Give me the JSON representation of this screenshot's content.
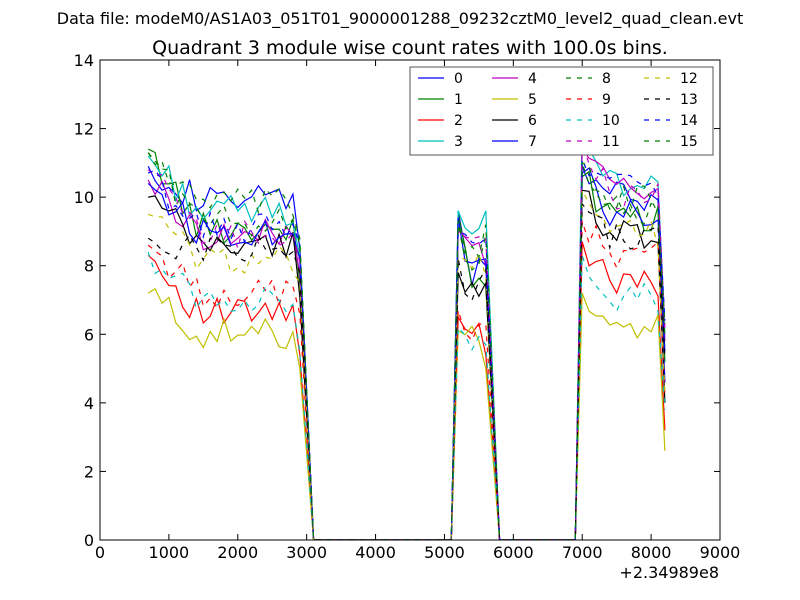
{
  "figure": {
    "suptitle": "Data file: modeM0/AS1A03_051T01_9000001288_09232cztM0_level2_quad_clean.evt"
  },
  "chart_data": {
    "type": "line",
    "title": "Quadrant 3 module wise count rates with 100.0s bins.",
    "xlabel": "",
    "ylabel": "",
    "xlim": [
      0,
      9000
    ],
    "ylim": [
      0,
      14
    ],
    "x_offset_label": "+2.34989e8",
    "xticks": [
      0,
      1000,
      2000,
      3000,
      4000,
      5000,
      6000,
      7000,
      8000,
      9000
    ],
    "yticks": [
      0,
      2,
      4,
      6,
      8,
      10,
      12,
      14
    ],
    "grid": false,
    "legend": {
      "placement": "top-right",
      "columns": 4
    },
    "segments": [
      {
        "x_start": 700,
        "x_end": 2900
      },
      {
        "x_start": 5200,
        "x_end": 5600
      },
      {
        "x_start": 7000,
        "x_end": 8200
      }
    ],
    "zero_ranges": [
      [
        3100,
        5100
      ],
      [
        5800,
        6900
      ]
    ],
    "series": [
      {
        "name": "0",
        "color": "#0000ff",
        "style": "solid",
        "levels": [
          9.9,
          7.8,
          10.0
        ],
        "ends": [
          8.5,
          8.0,
          4.6
        ],
        "spike": [
          10.9,
          9.6,
          10.9
        ]
      },
      {
        "name": "1",
        "color": "#008000",
        "style": "solid",
        "levels": [
          9.1,
          7.7,
          9.4
        ],
        "ends": [
          7.5,
          7.4,
          5.2
        ],
        "spike": [
          11.4,
          9.5,
          10.6
        ]
      },
      {
        "name": "2",
        "color": "#ff0000",
        "style": "solid",
        "levels": [
          6.6,
          6.2,
          7.5
        ],
        "ends": [
          5.4,
          5.4,
          3.2
        ],
        "spike": [
          8.3,
          6.5,
          8.7
        ]
      },
      {
        "name": "3",
        "color": "#00bfbf",
        "style": "solid",
        "levels": [
          9.6,
          8.7,
          10.4
        ],
        "ends": [
          8.3,
          9.6,
          6.0
        ],
        "spike": [
          11.2,
          9.6,
          12.2
        ]
      },
      {
        "name": "4",
        "color": "#bf00bf",
        "style": "solid",
        "levels": [
          8.9,
          8.3,
          10.3
        ],
        "ends": [
          7.8,
          8.0,
          5.8
        ],
        "spike": [
          10.5,
          9.1,
          11.4
        ]
      },
      {
        "name": "5",
        "color": "#bfbf00",
        "style": "solid",
        "levels": [
          6.0,
          5.8,
          6.2
        ],
        "ends": [
          5.0,
          5.0,
          2.6
        ],
        "spike": [
          7.2,
          6.1,
          7.2
        ]
      },
      {
        "name": "6",
        "color": "#000000",
        "style": "solid",
        "levels": [
          8.6,
          7.4,
          8.9
        ],
        "ends": [
          7.1,
          7.5,
          4.0
        ],
        "spike": [
          10.0,
          7.8,
          10.2
        ]
      },
      {
        "name": "7",
        "color": "#0000ff",
        "style": "solid",
        "levels": [
          9.0,
          7.9,
          9.6
        ],
        "ends": [
          8.2,
          8.2,
          5.5
        ],
        "spike": [
          10.4,
          9.4,
          10.7
        ]
      },
      {
        "name": "8",
        "color": "#008000",
        "style": "dashed",
        "levels": [
          9.3,
          8.3,
          9.6
        ],
        "ends": [
          8.6,
          8.9,
          5.9
        ],
        "spike": [
          11.3,
          9.2,
          11.0
        ]
      },
      {
        "name": "9",
        "color": "#ff0000",
        "style": "dashed",
        "levels": [
          7.2,
          6.2,
          8.3
        ],
        "ends": [
          6.6,
          6.3,
          4.2
        ],
        "spike": [
          8.6,
          6.7,
          9.3
        ]
      },
      {
        "name": "10",
        "color": "#00bfbf",
        "style": "dashed",
        "levels": [
          7.0,
          5.9,
          7.1
        ],
        "ends": [
          5.5,
          5.7,
          3.8
        ],
        "spike": [
          8.4,
          6.2,
          8.3
        ]
      },
      {
        "name": "11",
        "color": "#bf00bf",
        "style": "dashed",
        "levels": [
          8.9,
          8.6,
          10.1
        ],
        "ends": [
          8.1,
          8.8,
          6.2
        ],
        "spike": [
          10.8,
          9.0,
          11.6
        ]
      },
      {
        "name": "12",
        "color": "#bfbf00",
        "style": "dashed",
        "levels": [
          8.2,
          7.9,
          9.0
        ],
        "ends": [
          7.5,
          7.7,
          4.3
        ],
        "spike": [
          9.5,
          8.3,
          10.2
        ]
      },
      {
        "name": "13",
        "color": "#000000",
        "style": "dashed",
        "levels": [
          8.5,
          7.4,
          8.8
        ],
        "ends": [
          7.8,
          7.9,
          5.3
        ],
        "spike": [
          8.8,
          8.2,
          9.8
        ]
      },
      {
        "name": "14",
        "color": "#0000ff",
        "style": "dashed",
        "levels": [
          9.1,
          8.4,
          10.4
        ],
        "ends": [
          8.6,
          8.8,
          6.4
        ],
        "spike": [
          10.7,
          9.0,
          11.1
        ]
      },
      {
        "name": "15",
        "color": "#008000",
        "style": "dashed",
        "levels": [
          9.8,
          8.5,
          9.9
        ],
        "ends": [
          8.8,
          9.2,
          6.3
        ],
        "spike": [
          11.3,
          9.3,
          11.0
        ]
      }
    ]
  }
}
